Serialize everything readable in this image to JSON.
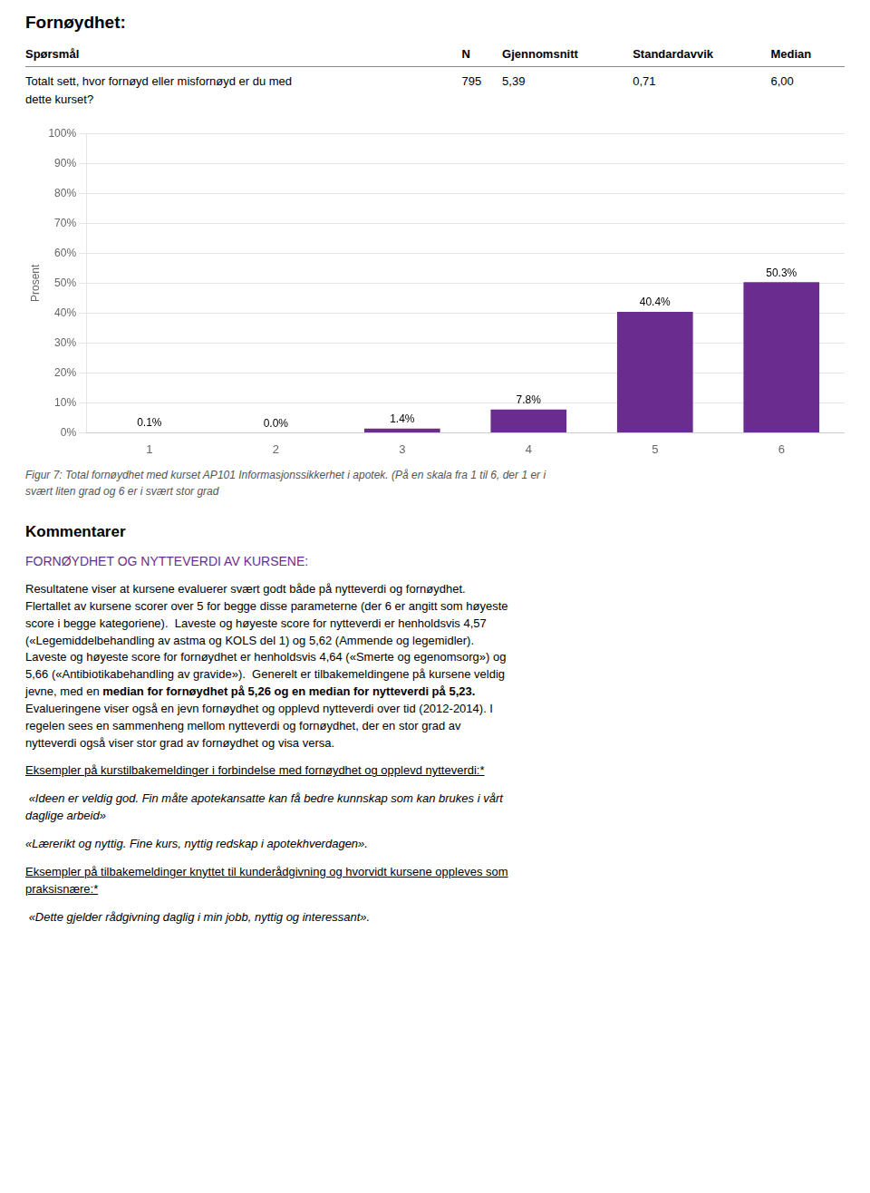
{
  "title": "Fornøydhet:",
  "table": {
    "headers": [
      "Spørsmål",
      "N",
      "Gjennomsnitt",
      "Standardavvik",
      "Median"
    ],
    "rows": [
      [
        "Totalt sett, hvor fornøyd eller misfornøyd er du med\ndette kurset?",
        "795",
        "5,39",
        "0,71",
        "6,00"
      ]
    ]
  },
  "chart_data": {
    "type": "bar",
    "categories": [
      1,
      2,
      3,
      4,
      5,
      6
    ],
    "values": [
      0.1,
      0.0,
      1.4,
      7.8,
      40.4,
      50.3
    ],
    "value_labels": [
      "0.1%",
      "0.0%",
      "1.4%",
      "7.8%",
      "40.4%",
      "50.3%"
    ],
    "data_labels": true,
    "color": "#6a2d8f",
    "y_label": "Prosent",
    "ylim": [
      0,
      100
    ],
    "yticks": [
      {
        "value": 0,
        "label": "0%"
      },
      {
        "value": 10,
        "label": "10%"
      },
      {
        "value": 20,
        "label": "20%"
      },
      {
        "value": 30,
        "label": "30%"
      },
      {
        "value": 40,
        "label": "40%"
      },
      {
        "value": 50,
        "label": "50%"
      },
      {
        "value": 60,
        "label": "60%"
      },
      {
        "value": 70,
        "label": "70%"
      },
      {
        "value": 80,
        "label": "80%"
      },
      {
        "value": 90,
        "label": "90%"
      },
      {
        "value": 100,
        "label": "100%"
      }
    ],
    "grid": true
  },
  "caption": [
    "Figur 7: Total fornøydhet med kurset AP101 Informasjonssikkerhet i apotek. (På en skala fra 1 til 6, der 1 er i",
    "svært liten grad og 6 er i svært stor grad"
  ],
  "section": "Kommentarer",
  "subsection": "FORNØYDHET OG NYTTEVERDI AV KURSENE:",
  "subsection_color": "#6a2d8f",
  "paragraph": {
    "before": "Resultatene viser at kursene evaluerer svært godt både på nytteverdi og fornøydhet.\nFlertallet av kursene scorer over 5 for begge disse parameterne (der 6 er angitt som høyeste\nscore i begge kategoriene).  Laveste og høyeste score for nytteverdi er henholdsvis 4,57\n(«Legemiddelbehandling av astma og KOLS del 1) og 5,62 (Ammende og legemidler).\nLaveste og høyeste score for fornøydhet er henholdsvis 4,64 («Smerte og egenomsorg») og\n5,66 («Antibiotikabehandling av gravide»).  Generelt er tilbakemeldingene på kursene veldig\njevne, med en ",
    "bold": "median for fornøydhet på 5,26 og en median for nytteverdi på 5,23.",
    "after": "\nEvalueringene viser også en jevn fornøydhet og opplevd nytteverdi over tid (2012-2014). I\nregelen sees en sammenheng mellom nytteverdi og fornøydhet, der en stor grad av\nnytteverdi også viser stor grad av fornøydhet og visa versa."
  },
  "examples": [
    {
      "heading": [
        "Eksempler på kurstilbakemeldinger i forbindelse med fornøydhet og opplevd nytteverdi:*"
      ],
      "quotes": [
        " «Ideen er veldig god. Fin måte apotekansatte kan få bedre kunnskap som kan brukes i vårt\ndaglige arbeid»",
        "«Lærerikt og nyttig. Fine kurs, nyttig redskap i apotekhverdagen»."
      ]
    },
    {
      "heading": [
        "Eksempler på tilbakemeldinger knyttet til kunderådgivning og hvorvidt kursene oppleves som",
        "praksisnære:*"
      ],
      "quotes": [
        " «Dette gjelder rådgivning daglig i min jobb, nyttig og interessant»."
      ]
    }
  ]
}
